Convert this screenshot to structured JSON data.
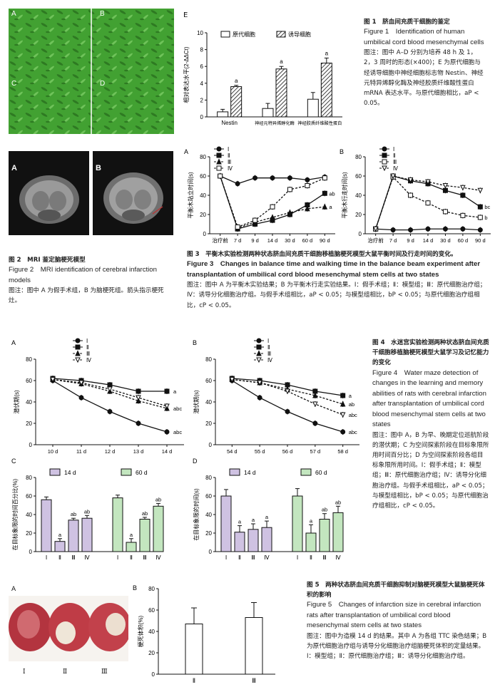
{
  "fig1": {
    "micro_labels": [
      "A",
      "B",
      "C",
      "D"
    ],
    "panel_e_label": "E",
    "caption_zh_title": "图 1　脐血间充质干细胞的鉴定",
    "caption_en_title": "Figure 1　Identification of human umbilical cord blood mesenchymal cells",
    "caption_note": "图注：图中 A–D 分别为培养 48 h 及 1，2，3 周时的形态(×400)；E 为原代细胞与经诱导细胞中神经细胞标志物 Nestin、神经元特异烯醇化酶及神经胶质纤维酸性蛋白 mRNA 表达水平。与原代细胞相比，aP < 0.05。"
  },
  "fig2": {
    "labels": [
      "A",
      "B"
    ],
    "caption_zh_title": "图 2　MRI 鉴定脑梗死模型",
    "caption_en_title": "Figure 2　MRI identification of cerebral infarction models",
    "caption_note": "图注：图中 A 为假手术组，B 为脑梗死组。箭头指示梗死灶。"
  },
  "fig3": {
    "caption_zh_title": "图 3　平衡木实验检测两种状态脐血间充质干细胞移植脑梗死模型大鼠平衡时间及行走时间的变化。",
    "caption_en_title": "Figure 3　Changes in balance time and walking time in the balance beam experiment after transplantation of umbilical cord blood mesenchymal stem cells at two states",
    "caption_note": "图注：图中 A 为平衡木实验结果；B 为平衡木行走实验结果。Ⅰ：假手术组；Ⅱ：模型组；Ⅲ：原代细胞治疗组；Ⅳ：诱导分化细胞治疗组。与假手术组相比，aP < 0.05；与模型组相比，bP < 0.05；与原代细胞治疗组相比，cP < 0.05。"
  },
  "fig4": {
    "caption_zh_title": "图 4　水迷宫实验检测两种状态脐血间充质干细胞移植脑梗死模型大鼠学习及记忆能力的变化",
    "caption_en_title": "Figure 4　Water maze detection of changes in the learning and memory abilities of rats with cerebral infarction after transplantation of umbilical cord blood mesenchymal stem cells at two states",
    "caption_note": "图注：图中 A，B 为早、晚期定位巡航阶段的潜伏期；C 为空间探索阶段在目标象限所用时间百分比；D 为空间探索阶段各组目标象限所用时间。Ⅰ：假手术组；Ⅱ：模型组；Ⅲ：原代细胞治疗组；Ⅳ：诱导分化细胞治疗组。与假手术组相比，aP < 0.05；与模型组相比，bP < 0.05；与原代细胞治疗组相比，cP < 0.05。"
  },
  "fig5": {
    "photo_label": "A",
    "photo_groups": [
      "Ⅰ",
      "Ⅱ",
      "Ⅲ"
    ],
    "caption_zh_title": "图 5　两种状态脐血间充质干细胞抑制对脑梗死模型大鼠脑梗死体积的影响",
    "caption_en_title": "Figure 5　Changes of infarction size in cerebral infarction rats after transplantation of umbilical cord blood mesenchymal stem cells at two states",
    "caption_note": "图注：图中为造模 14 d 的结果。其中 A 为各组 TTC 染色结果；B 为原代细胞治疗组与诱导分化细胞治疗组脑梗死体积的定量结果。Ⅰ：模型组；Ⅱ：原代细胞治疗组；Ⅲ：诱导分化细胞治疗组。"
  },
  "chart_data": [
    {
      "id": "fig1E",
      "type": "bar",
      "panel": "E",
      "categories": [
        "Nestin",
        "神经元特异烯醇化酶",
        "神经胶质纤维酸性蛋白"
      ],
      "series": [
        {
          "name": "原代细胞",
          "values": [
            0.6,
            1.0,
            2.1
          ],
          "errors": [
            0.3,
            0.6,
            0.8
          ],
          "fill": "#ffffff"
        },
        {
          "name": "诱导细胞",
          "values": [
            3.6,
            5.7,
            6.4
          ],
          "errors": [
            0.15,
            0.3,
            0.6
          ],
          "fill": "hatch",
          "sig": [
            "a",
            "a",
            "a"
          ]
        }
      ],
      "ylabel": "相对表达水平(2-ΔΔCt)",
      "ylim": [
        0,
        10
      ],
      "yticks": [
        0,
        2,
        4,
        6,
        8,
        10
      ],
      "legend": "top"
    },
    {
      "id": "fig3A",
      "type": "line",
      "panel": "A",
      "categories": [
        "治疗前",
        "7 d",
        "9 d",
        "14 d",
        "30 d",
        "60 d",
        "90 d"
      ],
      "series": [
        {
          "name": "Ⅰ",
          "marker": "filled-circle",
          "values": [
            60,
            52,
            58,
            58,
            58,
            56,
            59
          ]
        },
        {
          "name": "Ⅱ",
          "marker": "filled-square",
          "values": [
            60,
            5,
            10,
            14,
            20,
            30,
            42
          ],
          "label": "ab"
        },
        {
          "name": "Ⅲ",
          "marker": "filled-triangle",
          "values": [
            60,
            6,
            12,
            17,
            22,
            26,
            28
          ],
          "label": "a"
        },
        {
          "name": "Ⅳ",
          "marker": "open-square",
          "values": [
            60,
            7,
            14,
            28,
            46,
            50,
            58
          ]
        }
      ],
      "ylabel": "平衡木站立时间(s)",
      "ylim": [
        0,
        80
      ],
      "yticks": [
        0,
        20,
        40,
        60,
        80
      ],
      "legend": "top-left"
    },
    {
      "id": "fig3B",
      "type": "line",
      "panel": "B",
      "categories": [
        "治疗前",
        "7 d",
        "9 d",
        "14 d",
        "30 d",
        "60 d",
        "90 d"
      ],
      "series": [
        {
          "name": "Ⅰ",
          "marker": "filled-circle",
          "values": [
            5,
            4,
            4,
            5,
            5,
            5,
            4
          ]
        },
        {
          "name": "Ⅱ",
          "marker": "filled-square",
          "values": [
            5,
            60,
            55,
            52,
            45,
            40,
            28
          ],
          "label": "bc"
        },
        {
          "name": "Ⅲ",
          "marker": "open-square",
          "values": [
            5,
            59,
            40,
            32,
            23,
            19,
            17
          ],
          "label": "b"
        },
        {
          "name": "Ⅳ",
          "marker": "open-triangle",
          "values": [
            5,
            60,
            56,
            54,
            50,
            48,
            45
          ]
        }
      ],
      "ylabel": "平衡木行走时间(s)",
      "ylim": [
        0,
        80
      ],
      "yticks": [
        0,
        20,
        40,
        60,
        80
      ],
      "legend": "top-left"
    },
    {
      "id": "fig4A",
      "type": "line",
      "panel": "A",
      "categories": [
        "10 d",
        "11 d",
        "12 d",
        "13 d",
        "14 d"
      ],
      "series": [
        {
          "name": "Ⅰ",
          "marker": "filled-circle",
          "values": [
            60,
            44,
            31,
            20,
            12
          ],
          "label": "abc"
        },
        {
          "name": "Ⅱ",
          "marker": "filled-square",
          "values": [
            62,
            60,
            56,
            50,
            50
          ],
          "label": "a"
        },
        {
          "name": "Ⅲ",
          "marker": "filled-triangle",
          "values": [
            61,
            57,
            50,
            41,
            34
          ],
          "label": "abc"
        },
        {
          "name": "Ⅳ",
          "marker": "open-triangle",
          "values": [
            61,
            58,
            52,
            44,
            36
          ]
        }
      ],
      "ylabel": "潜伏期(s)",
      "ylim": [
        0,
        80
      ],
      "yticks": [
        0,
        20,
        40,
        60,
        80
      ],
      "legend": "top-center"
    },
    {
      "id": "fig4B",
      "type": "line",
      "panel": "B",
      "categories": [
        "54 d",
        "55 d",
        "56 d",
        "57 d",
        "58 d"
      ],
      "series": [
        {
          "name": "Ⅰ",
          "marker": "filled-circle",
          "values": [
            60,
            44,
            31,
            20,
            12
          ],
          "label": "abc"
        },
        {
          "name": "Ⅱ",
          "marker": "filled-square",
          "values": [
            62,
            60,
            56,
            50,
            46
          ],
          "label": "a"
        },
        {
          "name": "Ⅲ",
          "marker": "filled-triangle",
          "values": [
            61,
            58,
            52,
            46,
            38
          ],
          "label": "ab"
        },
        {
          "name": "Ⅳ",
          "marker": "open-triangle",
          "values": [
            61,
            58,
            50,
            38,
            28
          ],
          "label": "abc"
        }
      ],
      "ylabel": "潜伏期(s)",
      "ylim": [
        0,
        80
      ],
      "yticks": [
        0,
        20,
        40,
        60,
        80
      ],
      "legend": "top-center"
    },
    {
      "id": "fig4C",
      "type": "bar",
      "panel": "C",
      "categories": [
        "Ⅰ",
        "Ⅱ",
        "Ⅲ",
        "Ⅳ"
      ],
      "series": [
        {
          "name": "14 d",
          "color": "#cfc2e2",
          "values": [
            56,
            11,
            34,
            36
          ],
          "errors": [
            3,
            3,
            2,
            3
          ],
          "sig": [
            "",
            "a",
            "ab",
            "ab"
          ]
        },
        {
          "name": "60 d",
          "color": "#c3e6bf",
          "values": [
            58,
            10,
            35,
            49
          ],
          "errors": [
            3,
            4,
            2,
            3
          ],
          "sig": [
            "",
            "a",
            "ab",
            "ab"
          ]
        }
      ],
      "ylabel": "在目标象限的时间百分比(%)",
      "ylim": [
        0,
        80
      ],
      "yticks": [
        0,
        20,
        40,
        60,
        80
      ],
      "legend": "top"
    },
    {
      "id": "fig4D",
      "type": "bar",
      "panel": "D",
      "categories": [
        "Ⅰ",
        "Ⅱ",
        "Ⅲ",
        "Ⅳ"
      ],
      "series": [
        {
          "name": "14 d",
          "color": "#cfc2e2",
          "values": [
            60,
            21,
            24,
            26
          ],
          "errors": [
            7,
            7,
            6,
            7
          ],
          "sig": [
            "",
            "a",
            "a",
            "a"
          ]
        },
        {
          "name": "60 d",
          "color": "#c3e6bf",
          "values": [
            60,
            20,
            35,
            42
          ],
          "errors": [
            8,
            9,
            6,
            7
          ],
          "sig": [
            "",
            "a",
            "ab",
            "ab"
          ]
        }
      ],
      "ylabel": "在目标象限的时间(s)",
      "ylim": [
        0,
        80
      ],
      "yticks": [
        0,
        20,
        40,
        60,
        80
      ],
      "legend": "top"
    },
    {
      "id": "fig5B",
      "type": "bar",
      "panel": "B",
      "categories": [
        "Ⅱ",
        "Ⅲ"
      ],
      "values": [
        47,
        53
      ],
      "errors": [
        15,
        14
      ],
      "ylabel": "梗死体积(%)",
      "ylim": [
        0,
        80
      ],
      "yticks": [
        0,
        20,
        40,
        60,
        80
      ]
    }
  ]
}
